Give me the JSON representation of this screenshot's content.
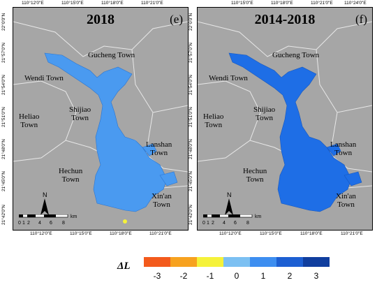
{
  "panels": [
    {
      "year": "2018",
      "letter": "(e)"
    },
    {
      "year": "2014-2018",
      "letter": "(f)"
    }
  ],
  "towns": {
    "gucheng": "Gucheng Town",
    "wendi": "Wendi Town",
    "heliao_1": "Heliao",
    "heliao_2": "Town",
    "shijiao_1": "Shijiao",
    "shijiao_2": "Town",
    "lanshan_1": "Lanshan",
    "lanshan_2": "Town",
    "hechun_1": "Hechun",
    "hechun_2": "Town",
    "xinan_1": "Xin'an",
    "xinan_2": "Town"
  },
  "lon_ticks": [
    "110°12'0\"E",
    "110°15'0\"E",
    "110°18'0\"E",
    "110°21'0\"E",
    "110°24'0\"E"
  ],
  "lat_ticks": [
    "22°0'0\"N",
    "21°57'0\"N",
    "21°54'0\"N",
    "21°51'0\"N",
    "21°48'0\"N",
    "21°45'0\"N",
    "21°42'0\"N"
  ],
  "north_label": "N",
  "scale": {
    "labels": [
      "0",
      "1",
      "2",
      "4",
      "6",
      "8"
    ],
    "unit": "km"
  },
  "legend": {
    "title": "ΔL",
    "items": [
      {
        "label": "-3",
        "color": "#f35a1c"
      },
      {
        "label": "-2",
        "color": "#f7a21f"
      },
      {
        "label": "-1",
        "color": "#f5f23a"
      },
      {
        "label": "0",
        "color": "#7cc0f2"
      },
      {
        "label": "1",
        "color": "#3d8ef0"
      },
      {
        "label": "2",
        "color": "#1d5fd2"
      },
      {
        "label": "3",
        "color": "#103e9e"
      }
    ]
  },
  "colors": {
    "background": "#a6a6a6",
    "boundary": "#e8e8e8",
    "reservoir_2018": "#4a9af0",
    "reservoir_total": "#1e6ee6"
  }
}
